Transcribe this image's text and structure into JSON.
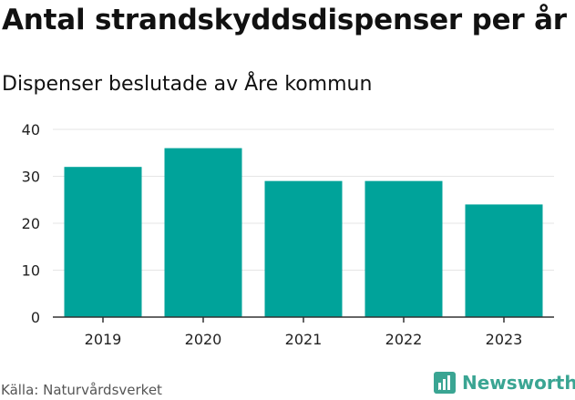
{
  "title": "Antal strandskyddsdispenser per år",
  "subtitle": "Dispenser beslutade av Åre kommun",
  "source": "Källa: Naturvårdsverket",
  "brand": {
    "name": "Newsworthy",
    "icon": "bar-chart-logo-icon",
    "color": "#3aa593"
  },
  "colors": {
    "bar": "#00a39a",
    "axis": "#333333",
    "grid": "#e6e6e6"
  },
  "chart_data": {
    "type": "bar",
    "title": "Antal strandskyddsdispenser per år",
    "subtitle": "Dispenser beslutade av Åre kommun",
    "categories": [
      "2019",
      "2020",
      "2021",
      "2022",
      "2023"
    ],
    "values": [
      32,
      36,
      29,
      29,
      24
    ],
    "xlabel": "",
    "ylabel": "",
    "ylim": [
      0,
      40
    ],
    "yticks": [
      0,
      10,
      20,
      30,
      40
    ],
    "grid": true,
    "legend": "none"
  }
}
